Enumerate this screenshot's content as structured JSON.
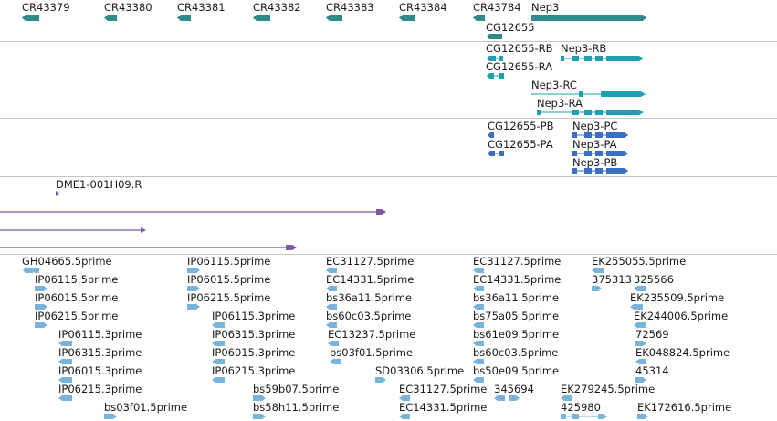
{
  "colors": {
    "gene": "#2c8c8c",
    "transcript": "#1f9fb0",
    "protein": "#3b6fc4",
    "reporter": "#7d57a8",
    "est": "#7ab3da",
    "separator": "#c4c4c4"
  },
  "tracks": {
    "genes": {
      "items": [
        {
          "label": "CR43379"
        },
        {
          "label": "CR43380"
        },
        {
          "label": "CR43381"
        },
        {
          "label": "CR43382"
        },
        {
          "label": "CR43383"
        },
        {
          "label": "CR43384"
        },
        {
          "label": "CR43784"
        },
        {
          "label": "Nep3"
        },
        {
          "label": "CG12655"
        }
      ]
    },
    "transcripts": {
      "items": [
        {
          "label": "CG12655-RB"
        },
        {
          "label": "Nep3-RB"
        },
        {
          "label": "CG12655-RA"
        },
        {
          "label": "Nep3-RC"
        },
        {
          "label": "Nep3-RA"
        }
      ]
    },
    "proteins": {
      "items": [
        {
          "label": "CG12655-PB"
        },
        {
          "label": "Nep3-PC"
        },
        {
          "label": "CG12655-PA"
        },
        {
          "label": "Nep3-PA"
        },
        {
          "label": "Nep3-PB"
        }
      ]
    },
    "reporters": {
      "items": [
        {
          "label": "DME1-001H09.R"
        }
      ]
    },
    "ests": {
      "items": [
        {
          "label": "GH04665.5prime"
        },
        {
          "label": "IP06115.5prime"
        },
        {
          "label": "IP06015.5prime"
        },
        {
          "label": "IP06215.5prime"
        },
        {
          "label": "IP06115.3prime"
        },
        {
          "label": "IP06315.3prime"
        },
        {
          "label": "IP06015.3prime"
        },
        {
          "label": "IP06215.3prime"
        },
        {
          "label": "bs03f01.5prime"
        },
        {
          "label": "IP06115.5prime"
        },
        {
          "label": "IP06015.5prime"
        },
        {
          "label": "IP06215.5prime"
        },
        {
          "label": "IP06115.3prime"
        },
        {
          "label": "IP06315.3prime"
        },
        {
          "label": "IP06015.3prime"
        },
        {
          "label": "IP06215.3prime"
        },
        {
          "label": "bs59b07.5prime"
        },
        {
          "label": "bs58h11.5prime"
        },
        {
          "label": "EC31127.5prime"
        },
        {
          "label": "EC14331.5prime"
        },
        {
          "label": "bs36a11.5prime"
        },
        {
          "label": "bs60c03.5prime"
        },
        {
          "label": "EC13237.5prime"
        },
        {
          "label": "bs03f01.5prime"
        },
        {
          "label": "SD03306.5prime"
        },
        {
          "label": "EC31127.5prime"
        },
        {
          "label": "EC14331.5prime"
        },
        {
          "label": "EC31127.5prime"
        },
        {
          "label": "EC14331.5prime"
        },
        {
          "label": "bs36a11.5prime"
        },
        {
          "label": "bs75a05.5prime"
        },
        {
          "label": "bs61e09.5prime"
        },
        {
          "label": "bs60c03.5prime"
        },
        {
          "label": "bs50e09.5prime"
        },
        {
          "label": "345694"
        },
        {
          "label": "EK255055.5prime"
        },
        {
          "label": "375313"
        },
        {
          "label": "325566"
        },
        {
          "label": "EK235509.5prime"
        },
        {
          "label": "EK244006.5prime"
        },
        {
          "label": "72569"
        },
        {
          "label": "EK048824.5prime"
        },
        {
          "label": "45314"
        },
        {
          "label": "EK279245.5prime"
        },
        {
          "label": "425980"
        },
        {
          "label": "EK172616.5prime"
        }
      ]
    }
  }
}
